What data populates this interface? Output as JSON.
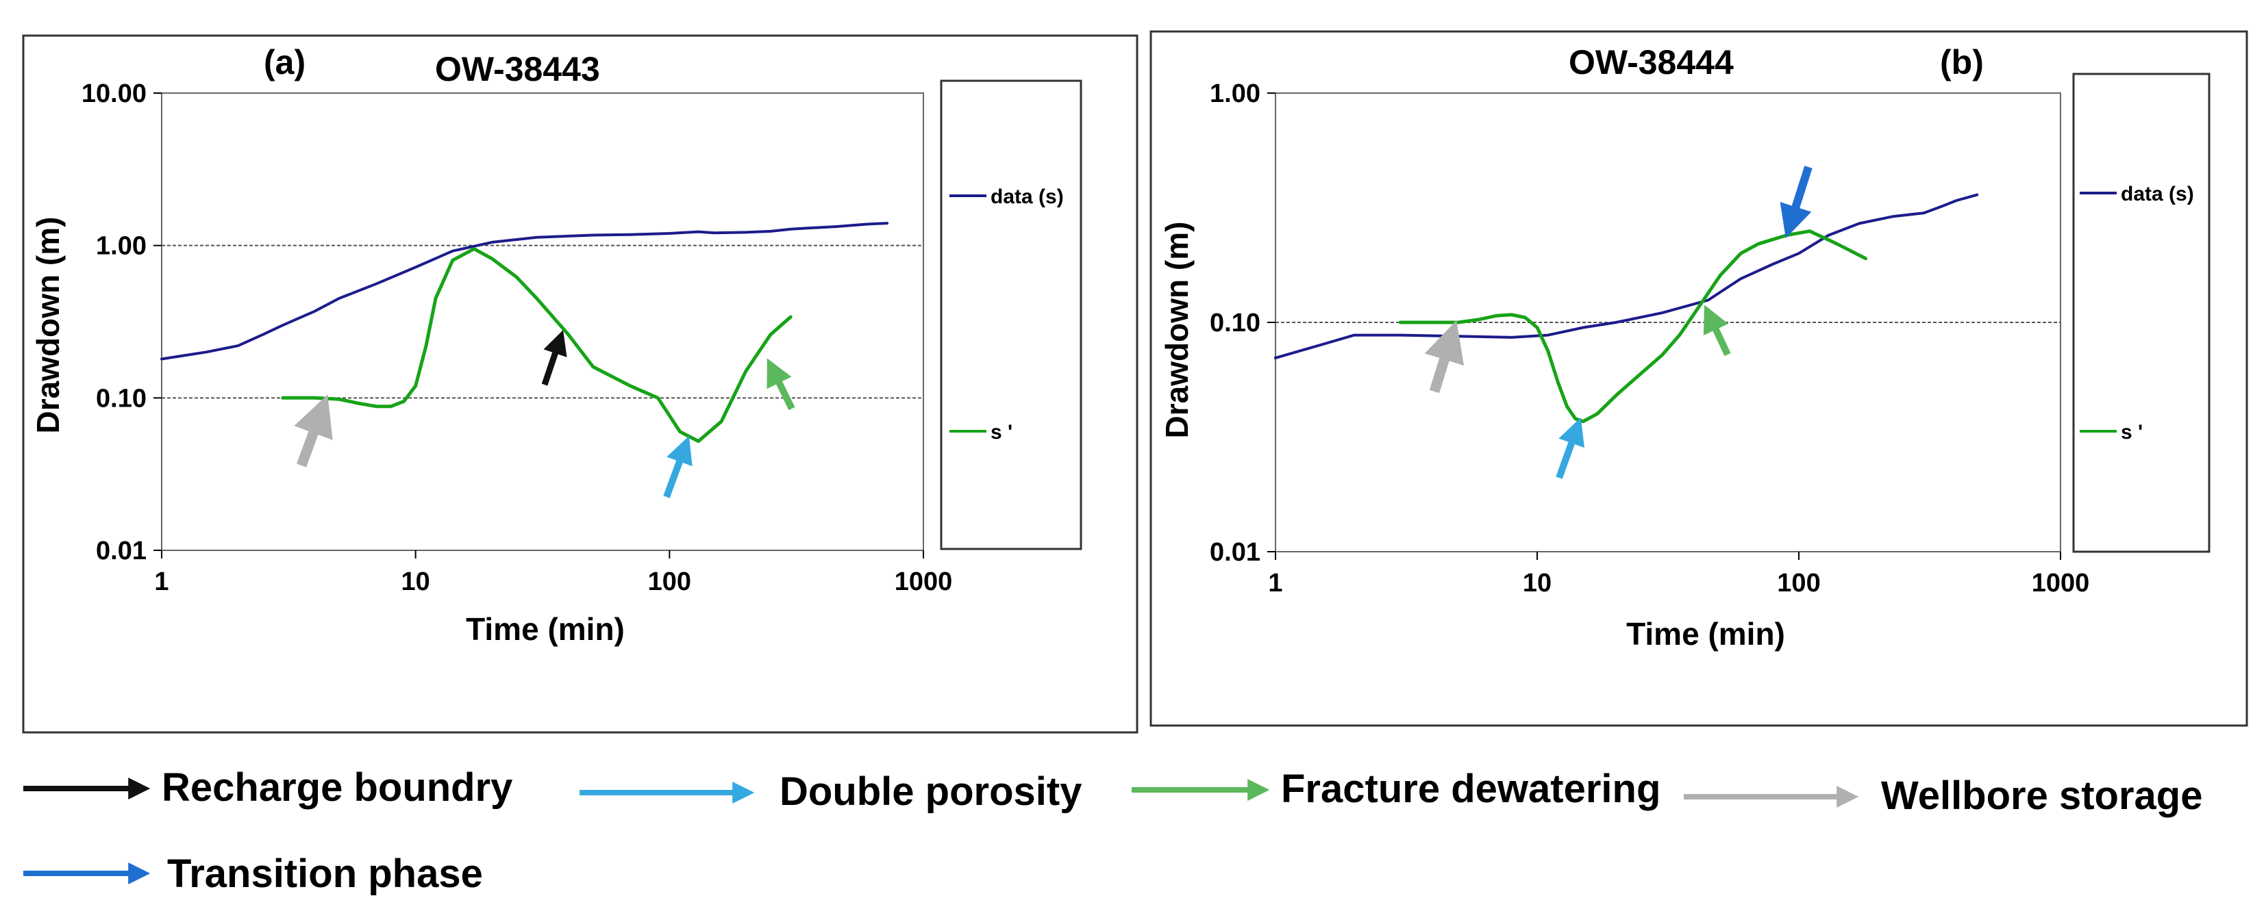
{
  "chart_data": [
    {
      "type": "line",
      "panel": "(a)",
      "title": "OW-38443",
      "xlabel": "Time (min)",
      "ylabel": "Drawdown (m)",
      "xscale": "log",
      "yscale": "log",
      "xlim": [
        1,
        1000
      ],
      "ylim": [
        0.01,
        10
      ],
      "xticks": [
        "1",
        "10",
        "100",
        "1000"
      ],
      "yticks": [
        "0.01",
        "0.10",
        "1.00",
        "10.00"
      ],
      "reference_lines": [
        0.1,
        1.0
      ],
      "legend": [
        "data (s)",
        "s '"
      ],
      "series": [
        {
          "name": "data (s)",
          "color": "#1c1c8c",
          "x": [
            1,
            1.5,
            2,
            2.5,
            3,
            4,
            5,
            7,
            10,
            14,
            20,
            30,
            50,
            70,
            100,
            130,
            150,
            200,
            250,
            300,
            350,
            450,
            600,
            720
          ],
          "y": [
            0.18,
            0.2,
            0.22,
            0.26,
            0.3,
            0.37,
            0.45,
            0.56,
            0.72,
            0.92,
            1.05,
            1.13,
            1.17,
            1.18,
            1.2,
            1.23,
            1.21,
            1.22,
            1.24,
            1.28,
            1.3,
            1.33,
            1.38,
            1.4
          ]
        },
        {
          "name": "s '",
          "color": "#17a317",
          "x": [
            3,
            4,
            5,
            6,
            7,
            8,
            9,
            10,
            11,
            12,
            14,
            17,
            20,
            25,
            30,
            40,
            50,
            70,
            90,
            110,
            130,
            160,
            200,
            250,
            300
          ],
          "y": [
            0.1,
            0.1,
            0.098,
            0.092,
            0.088,
            0.088,
            0.095,
            0.12,
            0.22,
            0.45,
            0.8,
            0.95,
            0.82,
            0.62,
            0.45,
            0.26,
            0.16,
            0.12,
            0.1,
            0.06,
            0.052,
            0.07,
            0.15,
            0.26,
            0.34
          ]
        }
      ],
      "annotations": [
        {
          "label": "Wellbore storage",
          "color": "#b0b0b0"
        },
        {
          "label": "Recharge boundry",
          "color": "#000000"
        },
        {
          "label": "Double porosity",
          "color": "#35a8e0"
        },
        {
          "label": "Fracture dewatering",
          "color": "#5cb85c"
        }
      ]
    },
    {
      "type": "line",
      "panel": "(b)",
      "title": "OW-38444",
      "xlabel": "Time (min)",
      "ylabel": "Drawdown (m)",
      "xscale": "log",
      "yscale": "log",
      "xlim": [
        1,
        1000
      ],
      "ylim": [
        0.01,
        1
      ],
      "xticks": [
        "1",
        "10",
        "100",
        "1000"
      ],
      "yticks": [
        "0.01",
        "0.10",
        "1.00"
      ],
      "reference_lines": [
        0.1
      ],
      "legend": [
        "data (s)",
        "s '"
      ],
      "series": [
        {
          "name": "data (s)",
          "color": "#1c1c8c",
          "x": [
            1,
            1.5,
            2,
            3,
            5,
            8,
            11,
            15,
            20,
            30,
            45,
            60,
            80,
            100,
            130,
            170,
            230,
            300,
            350,
            400,
            480
          ],
          "y": [
            0.07,
            0.08,
            0.088,
            0.088,
            0.087,
            0.086,
            0.088,
            0.095,
            0.1,
            0.11,
            0.125,
            0.155,
            0.18,
            0.2,
            0.24,
            0.27,
            0.29,
            0.3,
            0.32,
            0.34,
            0.36
          ]
        },
        {
          "name": "s '",
          "color": "#17a317",
          "x": [
            3,
            4,
            5,
            6,
            7,
            8,
            9,
            10,
            11,
            12,
            13,
            14,
            15,
            17,
            20,
            25,
            30,
            35,
            40,
            50,
            60,
            70,
            90,
            110,
            140,
            180
          ],
          "y": [
            0.1,
            0.1,
            0.1,
            0.103,
            0.107,
            0.108,
            0.105,
            0.095,
            0.075,
            0.055,
            0.043,
            0.038,
            0.037,
            0.04,
            0.048,
            0.06,
            0.072,
            0.088,
            0.11,
            0.16,
            0.2,
            0.22,
            0.24,
            0.25,
            0.22,
            0.19
          ]
        }
      ],
      "annotations": [
        {
          "label": "Wellbore storage",
          "color": "#b0b0b0"
        },
        {
          "label": "Double porosity",
          "color": "#35a8e0"
        },
        {
          "label": "Fracture dewatering",
          "color": "#5cb85c"
        },
        {
          "label": "Transition phase",
          "color": "#1f6fd1"
        }
      ]
    }
  ],
  "key": [
    {
      "label": "Recharge boundry",
      "color": "#111111"
    },
    {
      "label": "Double porosity",
      "color": "#35a8e0"
    },
    {
      "label": "Fracture dewatering",
      "color": "#5cb85c"
    },
    {
      "label": "Wellbore storage",
      "color": "#b0b0b0"
    },
    {
      "label": "Transition phase",
      "color": "#1f6fd1"
    }
  ]
}
